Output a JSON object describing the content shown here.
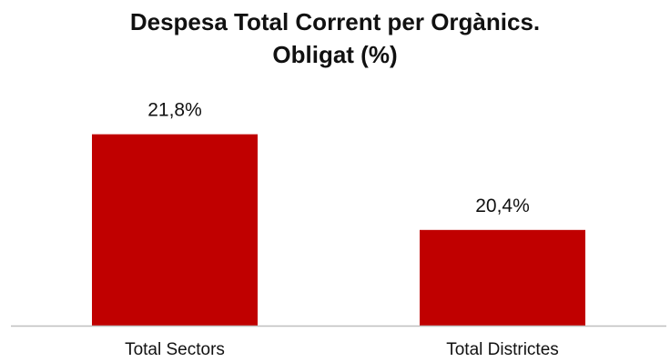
{
  "title_lines": [
    "Despesa Total Corrent per Orgànics.",
    "Obligat (%)"
  ],
  "chart_data": {
    "type": "bar",
    "categories": [
      "Total Sectors",
      "Total Districtes"
    ],
    "values": [
      21.8,
      20.4
    ],
    "value_labels": [
      "21,8%",
      "20,4%"
    ],
    "title": "Despesa Total Corrent per Orgànics. Obligat (%)",
    "xlabel": "",
    "ylabel": "",
    "ylim": [
      19.0,
      22.7
    ],
    "grid": false,
    "legend": "none",
    "bar_color": "#C00000",
    "axis_color": "#BFBFBF"
  }
}
